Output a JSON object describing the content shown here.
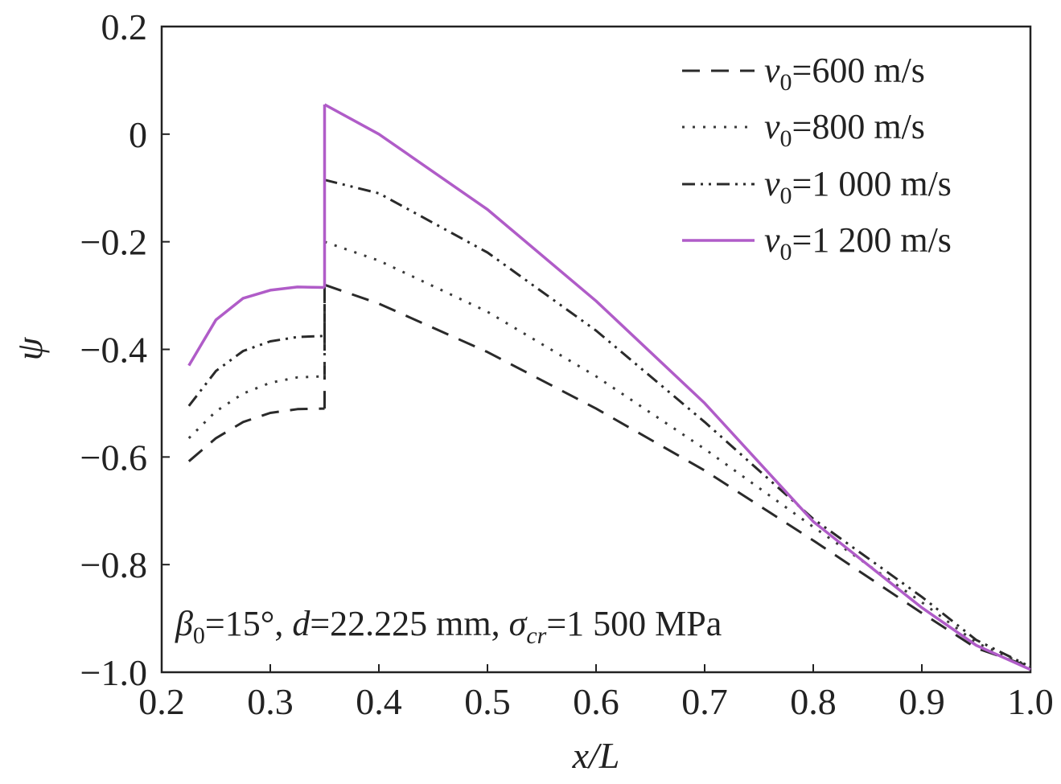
{
  "chart_data": {
    "type": "line",
    "xlabel": "x/L",
    "ylabel": "ψ",
    "xlim": [
      0.2,
      1.0
    ],
    "ylim": [
      -1.0,
      0.2
    ],
    "xticks": [
      "0.2",
      "0.3",
      "0.4",
      "0.5",
      "0.6",
      "0.7",
      "0.8",
      "0.9",
      "1.0"
    ],
    "yticks": [
      "0.2",
      "0",
      "−0.2",
      "−0.4",
      "−0.6",
      "−0.8",
      "−1.0"
    ],
    "legend_position": "top-right",
    "annotation": {
      "beta_sym": "β",
      "beta_sub": "0",
      "beta_val": "=15°, ",
      "d_sym": "d",
      "d_val": "=22.225 mm, ",
      "sigma_sym": "σ",
      "sigma_sub": "cr",
      "sigma_val": "=1 500 MPa"
    },
    "series": [
      {
        "name": "600 m/s",
        "legend_var": "v",
        "legend_sub": "0",
        "legend_text": "=600 m/s",
        "dash": "dash",
        "color": "#2a2a2a",
        "segments": [
          {
            "x": [
              0.225,
              0.25,
              0.275,
              0.3,
              0.325,
              0.35
            ],
            "y": [
              -0.608,
              -0.565,
              -0.535,
              -0.518,
              -0.511,
              -0.51
            ]
          },
          {
            "x": [
              0.35,
              0.35
            ],
            "y": [
              -0.51,
              -0.28
            ]
          },
          {
            "x": [
              0.35,
              0.4,
              0.5,
              0.6,
              0.7,
              0.8,
              0.9,
              0.95,
              1.0
            ],
            "y": [
              -0.28,
              -0.315,
              -0.405,
              -0.51,
              -0.625,
              -0.755,
              -0.89,
              -0.955,
              -0.99
            ]
          }
        ]
      },
      {
        "name": "800 m/s",
        "legend_var": "v",
        "legend_sub": "0",
        "legend_text": "=800 m/s",
        "dash": "dot",
        "color": "#3a3a3a",
        "segments": [
          {
            "x": [
              0.225,
              0.25,
              0.275,
              0.3,
              0.325,
              0.35
            ],
            "y": [
              -0.565,
              -0.515,
              -0.482,
              -0.462,
              -0.452,
              -0.45
            ]
          },
          {
            "x": [
              0.35,
              0.35
            ],
            "y": [
              -0.45,
              -0.2
            ]
          },
          {
            "x": [
              0.35,
              0.4,
              0.5,
              0.6,
              0.7,
              0.8,
              0.9,
              0.95,
              1.0
            ],
            "y": [
              -0.2,
              -0.235,
              -0.33,
              -0.45,
              -0.585,
              -0.73,
              -0.87,
              -0.945,
              -0.99
            ]
          }
        ]
      },
      {
        "name": "1 000 m/s",
        "legend_var": "v",
        "legend_sub": "0",
        "legend_text": "=1 000 m/s",
        "dash": "dashdotdot",
        "color": "#2a2a2a",
        "segments": [
          {
            "x": [
              0.225,
              0.25,
              0.275,
              0.3,
              0.325,
              0.35
            ],
            "y": [
              -0.505,
              -0.44,
              -0.403,
              -0.385,
              -0.377,
              -0.375
            ]
          },
          {
            "x": [
              0.35,
              0.35
            ],
            "y": [
              -0.375,
              -0.085
            ]
          },
          {
            "x": [
              0.35,
              0.4,
              0.5,
              0.6,
              0.7,
              0.8,
              0.9,
              0.95,
              1.0
            ],
            "y": [
              -0.085,
              -0.11,
              -0.22,
              -0.365,
              -0.535,
              -0.715,
              -0.86,
              -0.94,
              -0.99
            ]
          }
        ]
      },
      {
        "name": "1 200 m/s",
        "legend_var": "v",
        "legend_sub": "0",
        "legend_text": "=1 200 m/s",
        "dash": "solid",
        "color": "#b05cc8",
        "segments": [
          {
            "x": [
              0.225,
              0.25,
              0.275,
              0.3,
              0.325,
              0.35
            ],
            "y": [
              -0.43,
              -0.345,
              -0.305,
              -0.29,
              -0.284,
              -0.285
            ]
          },
          {
            "x": [
              0.35,
              0.35
            ],
            "y": [
              -0.285,
              0.055
            ]
          },
          {
            "x": [
              0.35,
              0.4,
              0.5,
              0.6,
              0.7,
              0.8,
              0.9,
              0.95,
              1.0
            ],
            "y": [
              0.055,
              0.0,
              -0.14,
              -0.31,
              -0.5,
              -0.72,
              -0.88,
              -0.95,
              -0.995
            ]
          }
        ]
      }
    ]
  }
}
